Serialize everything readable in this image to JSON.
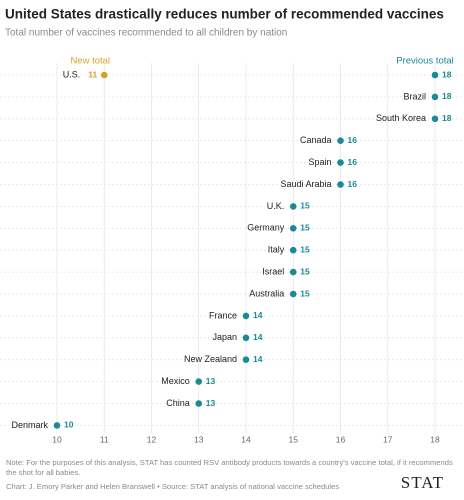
{
  "chart_data": {
    "type": "dot",
    "title": "United States drastically reduces number of recommended vaccines",
    "subtitle": "Total number of vaccines recommended to all children by nation",
    "categories": [
      "U.S.",
      "Brazil",
      "South Korea",
      "Canada",
      "Spain",
      "Saudi Arabia",
      "U.K.",
      "Germany",
      "Italy",
      "Israel",
      "Australia",
      "France",
      "Japan",
      "New Zealand",
      "Mexico",
      "China",
      "Denmark"
    ],
    "series": [
      {
        "name": "New total",
        "color": "#d4a22a",
        "values": [
          11,
          null,
          null,
          null,
          null,
          null,
          null,
          null,
          null,
          null,
          null,
          null,
          null,
          null,
          null,
          null,
          null
        ]
      },
      {
        "name": "Previous total",
        "color": "#1a8a94",
        "values": [
          18,
          18,
          18,
          16,
          16,
          16,
          15,
          15,
          15,
          15,
          15,
          14,
          14,
          14,
          13,
          13,
          10
        ]
      }
    ],
    "xlim": [
      10,
      18
    ],
    "xticks": [
      10,
      11,
      12,
      13,
      14,
      15,
      16,
      17,
      18
    ],
    "grid": true,
    "note": "Note: For the purposes of this analysis, STAT has counted RSV antibody products towards a country's vaccine total, if it recommends the shot for all babies.",
    "credit": "Chart: J. Emory Parker and Helen Branswell • Source: STAT analysis of national vaccine schedules",
    "logo": "STAT"
  }
}
